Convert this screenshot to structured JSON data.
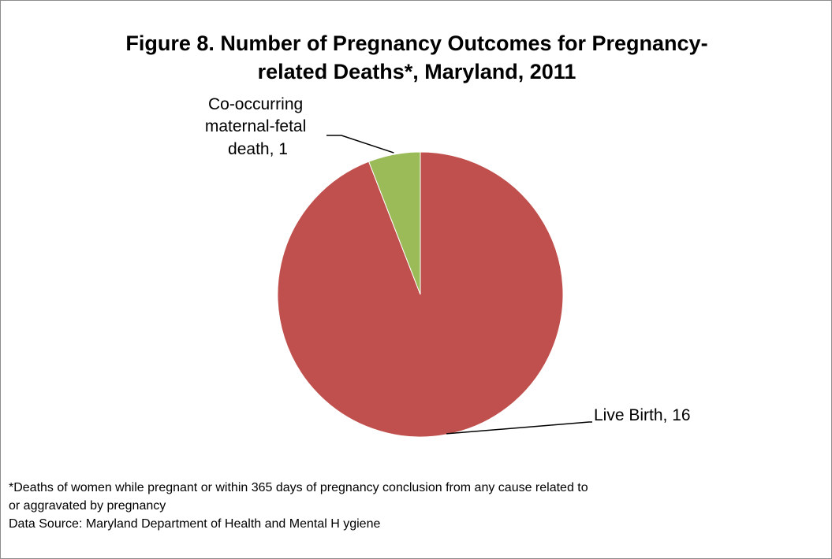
{
  "chart_data": {
    "type": "pie",
    "title_line1": "Figure 8. Number of Pregnancy Outcomes for Pregnancy-",
    "title_line2": "related Deaths*, Maryland, 2011",
    "slices": [
      {
        "label": "Live Birth",
        "value": 16,
        "label_text": "Live Birth, 16",
        "color": "#c0504d"
      },
      {
        "label": "Co-occurring maternal-fetal death",
        "value": 1,
        "label_lines": [
          "Co-occurring",
          "maternal-fetal",
          "death, 1"
        ],
        "color": "#9bbb59"
      }
    ],
    "start_angle": "12 o'clock",
    "direction": "clockwise",
    "legend": "none",
    "footnote_line1": "*Deaths of women while pregnant or within 365 days of pregnancy conclusion from  any cause related to",
    "footnote_line2": "or aggravated by pregnancy",
    "source": "Data Source: Maryland Department of Health and Mental H ygiene"
  },
  "colors": {
    "leader_line": "#000000",
    "slice_border": "#ffffff"
  }
}
